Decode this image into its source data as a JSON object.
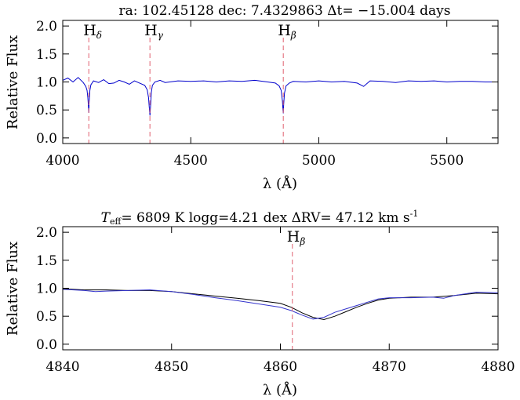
{
  "chart_data": [
    {
      "type": "line",
      "title": "ra: 102.45128   dec: 7.4329863   Δt= −15.004 days",
      "xlabel": "λ (Å)",
      "ylabel": "Relative Flux",
      "xlim": [
        4000,
        5700
      ],
      "ylim": [
        -0.1,
        2.1
      ],
      "xticks": [
        "4000",
        "4500",
        "5000",
        "5500"
      ],
      "yticks": [
        "0.0",
        "0.5",
        "1.0",
        "1.5",
        "2.0"
      ],
      "line_markers": [
        {
          "name": "Hδ",
          "base": "H",
          "sub": "δ",
          "x": 4101.7
        },
        {
          "name": "Hγ",
          "base": "H",
          "sub": "γ",
          "x": 4340.5
        },
        {
          "name": "Hβ",
          "base": "H",
          "sub": "β",
          "x": 4861.3
        }
      ],
      "series": [
        {
          "color": "#0000cc",
          "x": [
            4000,
            4020,
            4040,
            4060,
            4080,
            4090,
            4095,
            4098,
            4100,
            4101.7,
            4103,
            4106,
            4110,
            4120,
            4140,
            4160,
            4180,
            4200,
            4220,
            4240,
            4260,
            4280,
            4300,
            4320,
            4330,
            4335,
            4338,
            4340.5,
            4343,
            4346,
            4350,
            4360,
            4380,
            4400,
            4450,
            4500,
            4550,
            4600,
            4650,
            4700,
            4750,
            4800,
            4830,
            4845,
            4853,
            4858,
            4860,
            4861.3,
            4863,
            4866,
            4872,
            4885,
            4900,
            4950,
            5000,
            5050,
            5100,
            5150,
            5175,
            5200,
            5250,
            5300,
            5350,
            5400,
            5450,
            5500,
            5550,
            5600,
            5650,
            5700
          ],
          "y": [
            1.03,
            1.07,
            1.0,
            1.08,
            0.99,
            0.92,
            0.85,
            0.72,
            0.6,
            0.45,
            0.62,
            0.85,
            0.95,
            1.02,
            0.99,
            1.04,
            0.97,
            0.98,
            1.03,
            1.0,
            0.96,
            1.02,
            0.98,
            0.94,
            0.86,
            0.72,
            0.55,
            0.4,
            0.58,
            0.82,
            0.94,
            1.0,
            1.03,
            0.99,
            1.02,
            1.01,
            1.02,
            1.0,
            1.02,
            1.01,
            1.03,
            1.0,
            0.98,
            0.93,
            0.85,
            0.66,
            0.5,
            0.44,
            0.6,
            0.8,
            0.93,
            0.98,
            1.01,
            1.0,
            1.02,
            1.0,
            1.01,
            0.98,
            0.92,
            1.02,
            1.01,
            0.99,
            1.02,
            1.01,
            1.02,
            1.0,
            1.01,
            1.01,
            1.0,
            1.0
          ]
        }
      ]
    },
    {
      "type": "line",
      "title_parts": [
        "T",
        "eff",
        "= 6809 K  logg=4.21 dex  ΔRV= 47.12 km s",
        "-1"
      ],
      "xlabel": "λ (Å)",
      "ylabel": "Relative Flux",
      "xlim": [
        4840,
        4880
      ],
      "ylim": [
        -0.1,
        2.1
      ],
      "xticks": [
        "4840",
        "4850",
        "4860",
        "4870",
        "4880"
      ],
      "yticks": [
        "0.0",
        "0.5",
        "1.0",
        "1.5",
        "2.0"
      ],
      "line_markers": [
        {
          "name": "Hβ",
          "base": "H",
          "sub": "β",
          "x": 4861.1
        }
      ],
      "series": [
        {
          "color": "#000000",
          "x": [
            4840,
            4842,
            4844,
            4846,
            4848,
            4850,
            4852,
            4854,
            4856,
            4858,
            4860,
            4861,
            4862,
            4863,
            4864,
            4865,
            4866,
            4867,
            4868,
            4869,
            4870,
            4872,
            4874,
            4876,
            4878,
            4880
          ],
          "y": [
            0.99,
            0.97,
            0.97,
            0.96,
            0.96,
            0.94,
            0.9,
            0.86,
            0.82,
            0.78,
            0.73,
            0.66,
            0.56,
            0.48,
            0.44,
            0.5,
            0.58,
            0.66,
            0.73,
            0.79,
            0.82,
            0.84,
            0.84,
            0.87,
            0.91,
            0.9
          ]
        },
        {
          "color": "#3333cc",
          "x": [
            4840,
            4842,
            4843,
            4844,
            4846,
            4848,
            4850,
            4852,
            4854,
            4856,
            4858,
            4860,
            4861,
            4862,
            4863,
            4864,
            4865,
            4866,
            4867,
            4868,
            4869,
            4870,
            4872,
            4874,
            4875,
            4876,
            4878,
            4880
          ],
          "y": [
            0.98,
            0.96,
            0.94,
            0.95,
            0.96,
            0.97,
            0.94,
            0.89,
            0.83,
            0.78,
            0.72,
            0.66,
            0.6,
            0.52,
            0.45,
            0.48,
            0.57,
            0.63,
            0.69,
            0.75,
            0.81,
            0.83,
            0.83,
            0.84,
            0.82,
            0.87,
            0.93,
            0.92
          ]
        }
      ]
    }
  ]
}
